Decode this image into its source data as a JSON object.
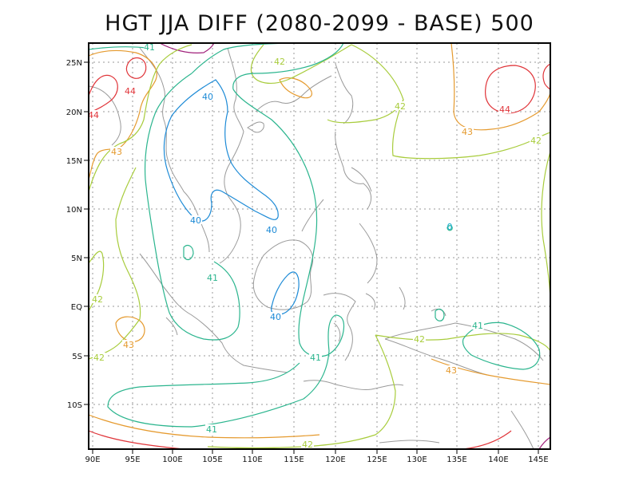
{
  "title": "HGT JJA DIFF (2080-2099 - BASE) 500",
  "x_ticks": [
    "90E",
    "95E",
    "100E",
    "105E",
    "110E",
    "115E",
    "120E",
    "125E",
    "130E",
    "135E",
    "140E",
    "145E"
  ],
  "y_ticks": [
    "25N",
    "20N",
    "15N",
    "10N",
    "5N",
    "EQ",
    "5S",
    "10S"
  ],
  "contour_labels": [
    {
      "text": "41",
      "color": "#2bb58e"
    },
    {
      "text": "42",
      "color": "#a8cc3c"
    },
    {
      "text": "44",
      "color": "#e0353a"
    },
    {
      "text": "44",
      "color": "#e0353a"
    },
    {
      "text": "40",
      "color": "#1c8ad6"
    },
    {
      "text": "44",
      "color": "#e0353a"
    },
    {
      "text": "42",
      "color": "#a8cc3c"
    },
    {
      "text": "43",
      "color": "#e59a2e"
    },
    {
      "text": "43",
      "color": "#e59a2e"
    },
    {
      "text": "42",
      "color": "#a8cc3c"
    },
    {
      "text": "40",
      "color": "#1c8ad6"
    },
    {
      "text": "40",
      "color": "#1c8ad6"
    },
    {
      "text": "0",
      "color": "#11aacc"
    },
    {
      "text": "41",
      "color": "#2bb58e"
    },
    {
      "text": "42",
      "color": "#a8cc3c"
    },
    {
      "text": "40",
      "color": "#1c8ad6"
    },
    {
      "text": "41",
      "color": "#2bb58e"
    },
    {
      "text": "43",
      "color": "#e59a2e"
    },
    {
      "text": "42",
      "color": "#a8cc3c"
    },
    {
      "text": "41",
      "color": "#2bb58e"
    },
    {
      "text": "42",
      "color": "#a8cc3c"
    },
    {
      "text": "43",
      "color": "#e59a2e"
    },
    {
      "text": "41",
      "color": "#2bb58e"
    },
    {
      "text": "42",
      "color": "#a8cc3c"
    }
  ],
  "colors": {
    "c40": "#1c8ad6",
    "c41": "#2bb58e",
    "c42": "#a8cc3c",
    "c43": "#e59a2e",
    "c44": "#e0353a",
    "c45": "#a0207a",
    "land": "#9a9a9a",
    "grid": "#999999"
  }
}
